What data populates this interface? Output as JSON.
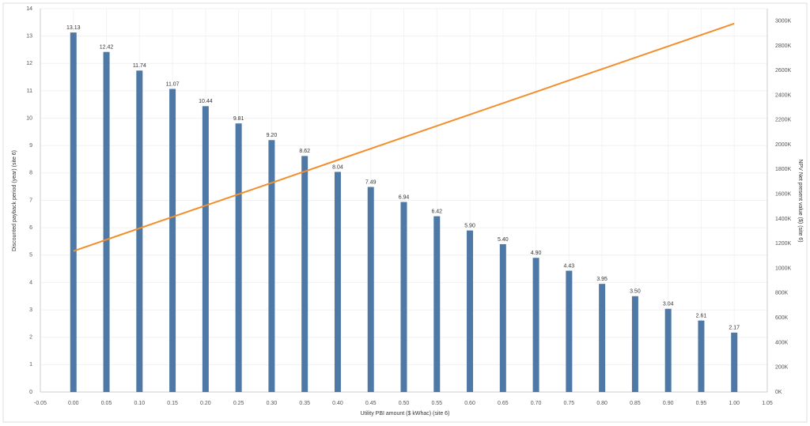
{
  "chart_data": {
    "type": "combo",
    "x_label": "Utility PBI amount ($ kWhac) (site 6)",
    "y_label": "Discounted payback period (year)  (site 6)",
    "y2_label": "NPV Net present value ($) (site 6)",
    "x": [
      0,
      0.05,
      0.1,
      0.15,
      0.2,
      0.25,
      0.3,
      0.35,
      0.4,
      0.45,
      0.5,
      0.55,
      0.6,
      0.65,
      0.7,
      0.75,
      0.8,
      0.85,
      0.9,
      0.95,
      1
    ],
    "series": [
      {
        "type": "bar",
        "color": "#4e79a7",
        "values": [
          13.13,
          12.42,
          11.74,
          11.07,
          10.44,
          9.81,
          9.2,
          8.62,
          8.04,
          7.49,
          6.94,
          6.42,
          5.9,
          5.4,
          4.9,
          4.43,
          3.95,
          3.5,
          3.04,
          2.61,
          2.17
        ],
        "value_labels": [
          "13.13",
          "12.42",
          "11.74",
          "11.07",
          "10.44",
          "9.81",
          "9.20",
          "8.62",
          "8.04",
          "7.49",
          "6.94",
          "6.42",
          "5.90",
          "5.40",
          "4.90",
          "4.43",
          "3.95",
          "3.50",
          "3.04",
          "2.61",
          "2.17"
        ]
      },
      {
        "type": "line",
        "color": "#f28e2b",
        "axis": "y2",
        "values": [
          1140000,
          1232000,
          1324000,
          1416000,
          1508000,
          1600000,
          1692000,
          1784000,
          1876000,
          1968000,
          2060000,
          2152000,
          2244000,
          2336000,
          2428000,
          2520000,
          2612000,
          2704000,
          2796000,
          2888000,
          2980000
        ]
      }
    ],
    "xlim": [
      -0.05,
      1.05
    ],
    "xticks": [
      -0.05,
      {
        "value": 0,
        "label": "0.00"
      },
      0.05,
      {
        "value": 0.1,
        "label": "0.10"
      },
      0.15,
      {
        "value": 0.2,
        "label": "0.20"
      },
      0.25,
      {
        "value": 0.3,
        "label": "0.30"
      },
      0.35,
      {
        "value": 0.4,
        "label": "0.40"
      },
      0.45,
      {
        "value": 0.5,
        "label": "0.50"
      },
      0.55,
      {
        "value": 0.6,
        "label": "0.60"
      },
      0.65,
      {
        "value": 0.7,
        "label": "0.70"
      },
      0.75,
      {
        "value": 0.8,
        "label": "0.80"
      },
      0.85,
      {
        "value": 0.9,
        "label": "0.90"
      },
      0.95,
      {
        "value": 1,
        "label": "1.00"
      },
      1.05
    ],
    "ylim": [
      0,
      14
    ],
    "yticks": [
      0,
      1,
      2,
      3,
      4,
      5,
      6,
      7,
      8,
      9,
      10,
      11,
      12,
      13,
      14
    ],
    "y2lim": [
      0,
      3100000
    ],
    "y2ticks": [
      {
        "value": 0,
        "label": "0K"
      },
      {
        "value": 200000,
        "label": "200K"
      },
      {
        "value": 400000,
        "label": "400K"
      },
      {
        "value": 600000,
        "label": "600K"
      },
      {
        "value": 800000,
        "label": "800K"
      },
      {
        "value": 1000000,
        "label": "1000K"
      },
      {
        "value": 1200000,
        "label": "1200K"
      },
      {
        "value": 1400000,
        "label": "1400K"
      },
      {
        "value": 1600000,
        "label": "1600K"
      },
      {
        "value": 1800000,
        "label": "1800K"
      },
      {
        "value": 2000000,
        "label": "2000K"
      },
      {
        "value": 2200000,
        "label": "2200K"
      },
      {
        "value": 2400000,
        "label": "2400K"
      },
      {
        "value": 2600000,
        "label": "2600K"
      },
      {
        "value": 2800000,
        "label": "2800K"
      },
      {
        "value": 3000000,
        "label": "3000K"
      }
    ],
    "grid": true
  }
}
